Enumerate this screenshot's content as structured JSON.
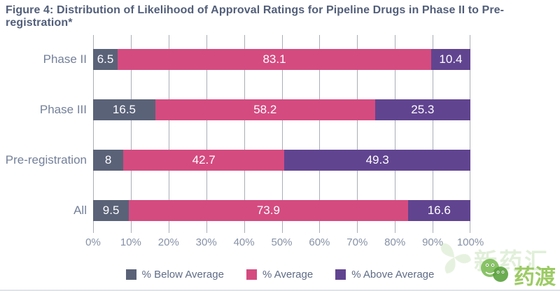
{
  "title": "Figure 4: Distribution of Likelihood of Approval Ratings for Pipeline Drugs in Phase II to Pre-registration*",
  "chart_data": {
    "type": "bar",
    "orientation": "horizontal",
    "stacked": true,
    "title": "Figure 4: Distribution of Likelihood of Approval Ratings for Pipeline Drugs in Phase II to Pre-registration*",
    "categories": [
      "Phase II",
      "Phase III",
      "Pre-registration",
      "All"
    ],
    "series": [
      {
        "name": "% Below Average",
        "color": "#5a6278",
        "values": [
          6.5,
          16.5,
          8,
          9.5
        ]
      },
      {
        "name": "% Average",
        "color": "#d44b80",
        "values": [
          83.1,
          58.2,
          42.7,
          73.9
        ]
      },
      {
        "name": "% Above Average",
        "color": "#614490",
        "values": [
          10.4,
          25.3,
          49.3,
          16.6
        ]
      }
    ],
    "xlim": [
      0,
      100
    ],
    "xticks": [
      "0%",
      "10%",
      "20%",
      "30%",
      "40%",
      "50%",
      "60%",
      "70%",
      "80%",
      "90%",
      "100%"
    ],
    "grid": "vertical",
    "legend_position": "bottom",
    "value_labels": "inside-white"
  },
  "watermark": {
    "brand": "药渡",
    "faint_text": "新药汇",
    "brand_color": "#8bc34a"
  }
}
